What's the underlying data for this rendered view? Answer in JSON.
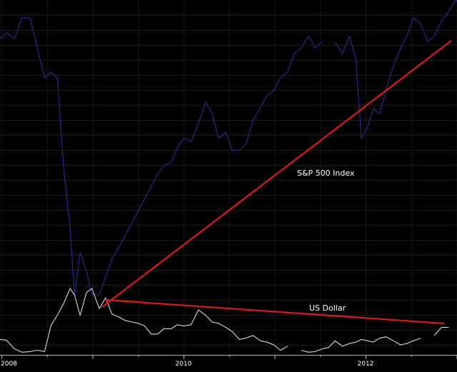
{
  "chart_data": {
    "type": "line",
    "title": "",
    "xlabel": "",
    "ylabel": "",
    "x_range": [
      2007.98,
      2013.0
    ],
    "x_ticks": [
      {
        "value": 2008,
        "label": "2008"
      },
      {
        "value": 2010,
        "label": "2010"
      },
      {
        "value": 2012,
        "label": "2012"
      }
    ],
    "grid": true,
    "legend": "none",
    "series": [
      {
        "key": "sp500",
        "color": "#2b2b9a",
        "scale_range": [
          0,
          100
        ],
        "points": [
          [
            2007.98,
            89
          ],
          [
            2008.05,
            91
          ],
          [
            2008.14,
            89
          ],
          [
            2008.22,
            96
          ],
          [
            2008.31,
            96
          ],
          [
            2008.39,
            86
          ],
          [
            2008.47,
            76
          ],
          [
            2008.54,
            78
          ],
          [
            2008.61,
            76
          ],
          [
            2008.68,
            46
          ],
          [
            2008.75,
            26
          ],
          [
            2008.8,
            4
          ],
          [
            2008.86,
            18
          ],
          [
            2008.93,
            12
          ],
          [
            2008.99,
            4
          ],
          [
            2009.07,
            4
          ],
          [
            2009.14,
            10
          ],
          [
            2009.21,
            16
          ],
          [
            2009.29,
            20
          ],
          [
            2009.36,
            24
          ],
          [
            2009.43,
            28
          ],
          [
            2009.5,
            32
          ],
          [
            2009.57,
            36
          ],
          [
            2009.64,
            40
          ],
          [
            2009.71,
            44
          ],
          [
            2009.78,
            47
          ],
          [
            2009.86,
            48
          ],
          [
            2009.93,
            53
          ],
          [
            2010.0,
            56
          ],
          [
            2010.08,
            55
          ],
          [
            2010.16,
            61
          ],
          [
            2010.24,
            68
          ],
          [
            2010.31,
            64
          ],
          [
            2010.38,
            56
          ],
          [
            2010.46,
            58
          ],
          [
            2010.53,
            52
          ],
          [
            2010.61,
            52
          ],
          [
            2010.68,
            54
          ],
          [
            2010.76,
            62
          ],
          [
            2010.84,
            66
          ],
          [
            2010.91,
            70
          ],
          [
            2010.99,
            72
          ],
          [
            2011.06,
            76
          ],
          [
            2011.14,
            78
          ],
          [
            2011.21,
            84
          ],
          [
            2011.29,
            86
          ],
          [
            2011.37,
            90
          ],
          [
            2011.44,
            86
          ],
          [
            2011.52,
            88
          ],
          [
            2011.59,
            null
          ],
          [
            2011.66,
            88
          ],
          [
            2011.74,
            84
          ],
          [
            2011.82,
            90
          ],
          [
            2011.89,
            82
          ],
          [
            2011.95,
            56
          ],
          [
            2012.02,
            60
          ],
          [
            2012.08,
            66
          ],
          [
            2012.15,
            64
          ],
          [
            2012.22,
            72
          ],
          [
            2012.3,
            80
          ],
          [
            2012.38,
            86
          ],
          [
            2012.45,
            90
          ],
          [
            2012.52,
            96
          ],
          [
            2012.6,
            94
          ],
          [
            2012.68,
            88
          ],
          [
            2012.75,
            90
          ],
          [
            2012.83,
            95
          ],
          [
            2012.91,
            98
          ],
          [
            2012.98,
            102
          ],
          [
            2013.05,
            100
          ],
          [
            2013.12,
            97
          ],
          [
            2013.2,
            null
          ],
          [
            2013.28,
            102
          ],
          [
            2013.36,
            109
          ],
          [
            2013.45,
            111
          ]
        ]
      },
      {
        "key": "usd",
        "color": "#d8d8d8",
        "scale_range": [
          0,
          100
        ],
        "points": [
          [
            2007.98,
            24
          ],
          [
            2008.05,
            23
          ],
          [
            2008.14,
            10
          ],
          [
            2008.22,
            5
          ],
          [
            2008.31,
            6
          ],
          [
            2008.39,
            8
          ],
          [
            2008.47,
            6
          ],
          [
            2008.54,
            45
          ],
          [
            2008.61,
            60
          ],
          [
            2008.68,
            78
          ],
          [
            2008.75,
            100
          ],
          [
            2008.8,
            90
          ],
          [
            2008.86,
            60
          ],
          [
            2008.93,
            94
          ],
          [
            2008.99,
            100
          ],
          [
            2009.07,
            70
          ],
          [
            2009.14,
            86
          ],
          [
            2009.21,
            62
          ],
          [
            2009.29,
            57
          ],
          [
            2009.36,
            52
          ],
          [
            2009.43,
            50
          ],
          [
            2009.5,
            48
          ],
          [
            2009.57,
            44
          ],
          [
            2009.64,
            32
          ],
          [
            2009.71,
            32
          ],
          [
            2009.78,
            40
          ],
          [
            2009.86,
            40
          ],
          [
            2009.93,
            46
          ],
          [
            2010.0,
            44
          ],
          [
            2010.08,
            46
          ],
          [
            2010.16,
            68
          ],
          [
            2010.24,
            60
          ],
          [
            2010.31,
            50
          ],
          [
            2010.38,
            48
          ],
          [
            2010.46,
            42
          ],
          [
            2010.53,
            36
          ],
          [
            2010.61,
            24
          ],
          [
            2010.68,
            26
          ],
          [
            2010.76,
            30
          ],
          [
            2010.84,
            22
          ],
          [
            2010.91,
            20
          ],
          [
            2010.99,
            16
          ],
          [
            2011.06,
            8
          ],
          [
            2011.14,
            14
          ],
          [
            2011.21,
            null
          ],
          [
            2011.29,
            8
          ],
          [
            2011.37,
            5
          ],
          [
            2011.44,
            6
          ],
          [
            2011.52,
            10
          ],
          [
            2011.59,
            12
          ],
          [
            2011.66,
            22
          ],
          [
            2011.74,
            14
          ],
          [
            2011.82,
            18
          ],
          [
            2011.89,
            20
          ],
          [
            2011.95,
            24
          ],
          [
            2012.02,
            22
          ],
          [
            2012.08,
            20
          ],
          [
            2012.15,
            26
          ],
          [
            2012.22,
            28
          ],
          [
            2012.3,
            22
          ],
          [
            2012.38,
            16
          ],
          [
            2012.45,
            18
          ],
          [
            2012.52,
            22
          ],
          [
            2012.6,
            26
          ],
          [
            2012.68,
            null
          ],
          [
            2012.75,
            30
          ],
          [
            2012.83,
            42
          ],
          [
            2012.91,
            42
          ]
        ]
      }
    ],
    "annotations": [
      {
        "text": "S&P 500 Index"
      },
      {
        "text": "US Dollar"
      }
    ]
  }
}
